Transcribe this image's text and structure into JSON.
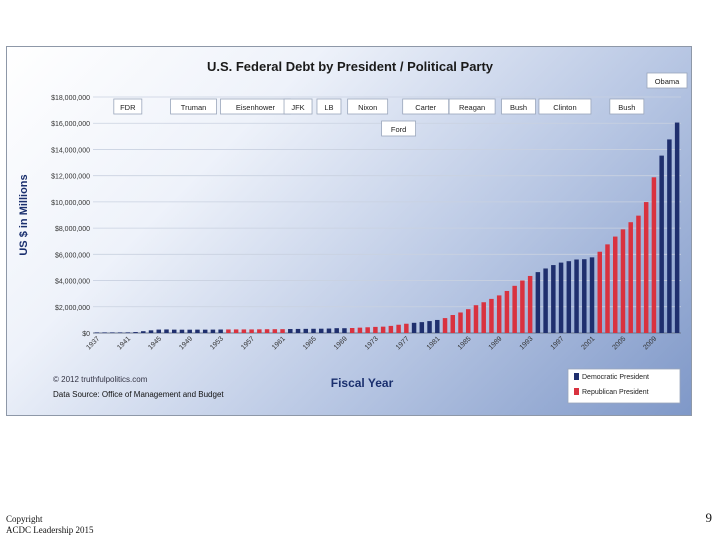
{
  "slide": {
    "copyright_line1": "Copyright",
    "copyright_line2": "ACDC Leadership 2015",
    "page_number": "9"
  },
  "chart_data": {
    "type": "bar",
    "title": "U.S. Federal Debt by President / Political Party",
    "xlabel": "Fiscal Year",
    "ylabel": "US $ in Millions",
    "ylim": [
      0,
      18000000
    ],
    "yticks": [
      "$0",
      "$2,000,000",
      "$4,000,000",
      "$6,000,000",
      "$8,000,000",
      "$10,000,000",
      "$12,000,000",
      "$14,000,000",
      "$16,000,000",
      "$18,000,000"
    ],
    "xticks": [
      "1937",
      "1941",
      "1945",
      "1949",
      "1953",
      "1957",
      "1961",
      "1965",
      "1969",
      "1973",
      "1977",
      "1981",
      "1985",
      "1989",
      "1993",
      "1997",
      "2001",
      "2005",
      "2009"
    ],
    "grid": true,
    "colors": {
      "Democratic": "#1f2f6e",
      "Republican": "#d9323f"
    },
    "legend": {
      "position": "bottom-right",
      "entries": [
        {
          "label": "Democratic President",
          "party": "Democratic"
        },
        {
          "label": "Republican President",
          "party": "Republican"
        }
      ]
    },
    "presidents": [
      {
        "name": "FDR",
        "party": "Democratic",
        "start": 1937,
        "end": 1945
      },
      {
        "name": "Truman",
        "party": "Democratic",
        "start": 1946,
        "end": 1953
      },
      {
        "name": "Eisenhower",
        "party": "Republican",
        "start": 1954,
        "end": 1961
      },
      {
        "name": "JFK",
        "party": "Democratic",
        "start": 1962,
        "end": 1964
      },
      {
        "name": "LB",
        "party": "Democratic",
        "start": 1965,
        "end": 1969
      },
      {
        "name": "Nixon",
        "party": "Republican",
        "start": 1970,
        "end": 1974
      },
      {
        "name": "Ford",
        "party": "Republican",
        "start": 1975,
        "end": 1977
      },
      {
        "name": "Carter",
        "party": "Democratic",
        "start": 1978,
        "end": 1981
      },
      {
        "name": "Reagan",
        "party": "Republican",
        "start": 1982,
        "end": 1989
      },
      {
        "name": "Bush",
        "party": "Republican",
        "start": 1990,
        "end": 1993
      },
      {
        "name": "Clinton",
        "party": "Democratic",
        "start": 1994,
        "end": 2001
      },
      {
        "name": "Bush",
        "party": "Republican",
        "start": 2002,
        "end": 2009
      },
      {
        "name": "Obama",
        "party": "Democratic",
        "start": 2010,
        "end": 2012
      }
    ],
    "series": [
      {
        "x": [
          1937,
          1938,
          1939,
          1940,
          1941,
          1942,
          1943,
          1944,
          1945,
          1946,
          1947,
          1948,
          1949,
          1950,
          1951,
          1952,
          1953,
          1954,
          1955,
          1956,
          1957,
          1958,
          1959,
          1960,
          1961,
          1962,
          1963,
          1964,
          1965,
          1966,
          1967,
          1968,
          1969,
          1970,
          1971,
          1972,
          1973,
          1974,
          1975,
          1976,
          1977,
          1978,
          1979,
          1980,
          1981,
          1982,
          1983,
          1984,
          1985,
          1986,
          1987,
          1988,
          1989,
          1990,
          1991,
          1992,
          1993,
          1994,
          1995,
          1996,
          1997,
          1998,
          1999,
          2000,
          2001,
          2002,
          2003,
          2004,
          2005,
          2006,
          2007,
          2008,
          2009,
          2010,
          2011,
          2012
        ],
        "values": [
          36000,
          37000,
          40000,
          43000,
          49000,
          72000,
          137000,
          204000,
          260000,
          271000,
          257000,
          252000,
          253000,
          257000,
          255000,
          259000,
          266000,
          271000,
          274000,
          273000,
          272000,
          280000,
          288000,
          290000,
          292000,
          303000,
          310000,
          316000,
          322000,
          328000,
          340000,
          368000,
          365000,
          381000,
          408000,
          436000,
          466000,
          484000,
          542000,
          629000,
          706000,
          777000,
          829000,
          909000,
          995000,
          1137000,
          1372000,
          1565000,
          1817000,
          2121000,
          2346000,
          2601000,
          2868000,
          3206000,
          3598000,
          4002000,
          4351000,
          4643000,
          4921000,
          5181000,
          5369000,
          5478000,
          5606000,
          5629000,
          5770000,
          6198000,
          6760000,
          7355000,
          7905000,
          8451000,
          8951000,
          9986000,
          11876000,
          13529000,
          14764000,
          16051000
        ]
      }
    ],
    "annotations": [
      "© 2012  truthfulpolitics.com",
      "Data Source:  Office of Management and Budget"
    ]
  }
}
